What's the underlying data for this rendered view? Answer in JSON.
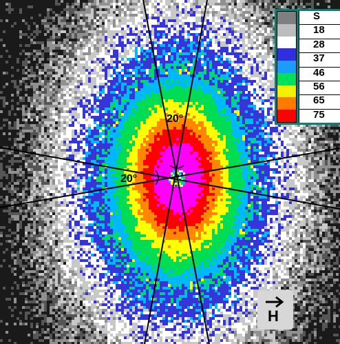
{
  "image": {
    "description_type": "magnetic-domain intensity map",
    "colormap": [
      "#000000",
      "#808080",
      "#ffffff",
      "#3030d0",
      "#00b8ff",
      "#00dd55",
      "#ffff00",
      "#ff8800",
      "#ff0000",
      "#ff00ff"
    ]
  },
  "legend": {
    "swatch_colors": [
      "#7f7f7f",
      "#bdbdbd",
      "#ffffff",
      "#2f2fe0",
      "#1b9cff",
      "#00e05a",
      "#f0f000",
      "#ff7a00",
      "#ff0000"
    ],
    "values": [
      "S",
      "18",
      "28",
      "37",
      "46",
      "56",
      "65",
      "75"
    ],
    "frame_color": "#0b7f73"
  },
  "annotations": {
    "angle_top": "20°",
    "angle_left": "20°"
  },
  "field_indicator": {
    "label": "H",
    "arrow": "right-arrow-icon"
  }
}
